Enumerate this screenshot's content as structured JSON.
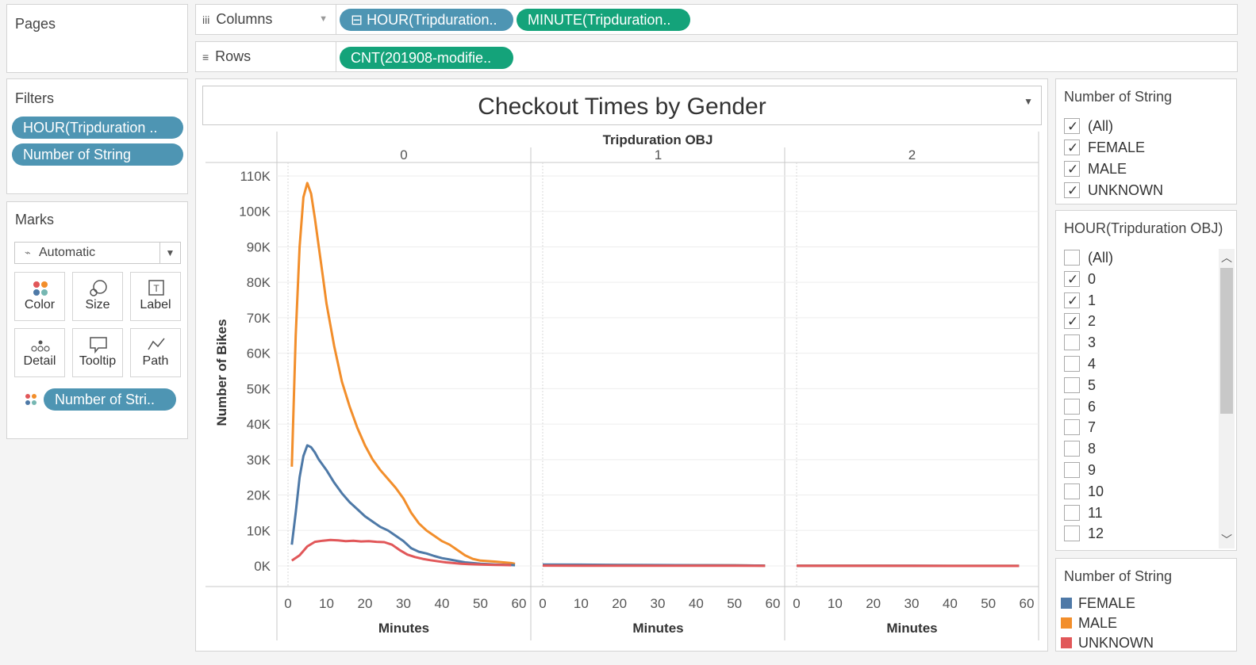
{
  "pages": {
    "title": "Pages"
  },
  "columns": {
    "label": "Columns",
    "pills": [
      "⊟ HOUR(Tripduration..",
      "MINUTE(Tripduration.."
    ]
  },
  "rows": {
    "label": "Rows",
    "pills": [
      "CNT(201908-modifie.."
    ]
  },
  "filters": {
    "title": "Filters",
    "pills": [
      "HOUR(Tripduration ..",
      "Number of String"
    ]
  },
  "marks": {
    "title": "Marks",
    "type": "Automatic",
    "cards": [
      "Color",
      "Size",
      "Label",
      "Detail",
      "Tooltip",
      "Path"
    ],
    "pill": "Number of Stri.."
  },
  "view": {
    "title": "Checkout Times by Gender"
  },
  "legend_filter_string": {
    "title": "Number of String",
    "items": [
      {
        "label": "(All)",
        "checked": true
      },
      {
        "label": "FEMALE",
        "checked": true
      },
      {
        "label": "MALE",
        "checked": true
      },
      {
        "label": "UNKNOWN",
        "checked": true
      }
    ]
  },
  "legend_filter_hour": {
    "title": "HOUR(Tripduration OBJ)",
    "items": [
      {
        "label": "(All)",
        "checked": false
      },
      {
        "label": "0",
        "checked": true
      },
      {
        "label": "1",
        "checked": true
      },
      {
        "label": "2",
        "checked": true
      },
      {
        "label": "3",
        "checked": false
      },
      {
        "label": "4",
        "checked": false
      },
      {
        "label": "5",
        "checked": false
      },
      {
        "label": "6",
        "checked": false
      },
      {
        "label": "7",
        "checked": false
      },
      {
        "label": "8",
        "checked": false
      },
      {
        "label": "9",
        "checked": false
      },
      {
        "label": "10",
        "checked": false
      },
      {
        "label": "11",
        "checked": false
      },
      {
        "label": "12",
        "checked": false
      }
    ]
  },
  "color_legend": {
    "title": "Number of String",
    "items": [
      {
        "label": "FEMALE",
        "color": "#4e79a7"
      },
      {
        "label": "MALE",
        "color": "#f28e2b"
      },
      {
        "label": "UNKNOWN",
        "color": "#e15759"
      }
    ]
  },
  "chart_data": {
    "type": "line",
    "title": "Checkout Times by Gender",
    "panel_header": "Tripduration OBJ",
    "panels": [
      "0",
      "1",
      "2"
    ],
    "xlabel": "Minutes",
    "ylabel": "Number of Bikes",
    "xlim": [
      0,
      60
    ],
    "ylim": [
      0,
      110000
    ],
    "x_ticks": [
      "0",
      "10",
      "20",
      "30",
      "40",
      "50",
      "60"
    ],
    "y_ticks": [
      "0K",
      "10K",
      "20K",
      "30K",
      "40K",
      "50K",
      "60K",
      "70K",
      "80K",
      "90K",
      "100K",
      "110K"
    ],
    "y_tick_values": [
      0,
      10000,
      20000,
      30000,
      40000,
      50000,
      60000,
      70000,
      80000,
      90000,
      100000,
      110000
    ],
    "series": [
      {
        "name": "MALE",
        "color": "#f28e2b",
        "panels": [
          [
            [
              1,
              28000
            ],
            [
              2,
              65000
            ],
            [
              3,
              90000
            ],
            [
              4,
              104000
            ],
            [
              5,
              108000
            ],
            [
              6,
              105000
            ],
            [
              7,
              98000
            ],
            [
              8,
              90000
            ],
            [
              9,
              82000
            ],
            [
              10,
              74000
            ],
            [
              12,
              62000
            ],
            [
              14,
              52000
            ],
            [
              16,
              45000
            ],
            [
              18,
              39000
            ],
            [
              20,
              34000
            ],
            [
              22,
              30000
            ],
            [
              24,
              27000
            ],
            [
              26,
              24500
            ],
            [
              28,
              22000
            ],
            [
              30,
              19000
            ],
            [
              32,
              15000
            ],
            [
              34,
              12000
            ],
            [
              36,
              10000
            ],
            [
              38,
              8500
            ],
            [
              40,
              7000
            ],
            [
              42,
              6000
            ],
            [
              44,
              4500
            ],
            [
              46,
              3000
            ],
            [
              48,
              2000
            ],
            [
              50,
              1500
            ],
            [
              54,
              1200
            ],
            [
              58,
              800
            ],
            [
              59,
              600
            ]
          ],
          [
            [
              0,
              300
            ],
            [
              10,
              280
            ],
            [
              20,
              250
            ],
            [
              30,
              220
            ],
            [
              40,
              200
            ],
            [
              50,
              150
            ],
            [
              58,
              100
            ]
          ],
          [
            [
              0,
              50
            ],
            [
              10,
              40
            ],
            [
              20,
              40
            ],
            [
              30,
              30
            ],
            [
              40,
              30
            ],
            [
              50,
              20
            ],
            [
              58,
              20
            ]
          ]
        ]
      },
      {
        "name": "FEMALE",
        "color": "#4e79a7",
        "panels": [
          [
            [
              1,
              6000
            ],
            [
              2,
              15000
            ],
            [
              3,
              25000
            ],
            [
              4,
              31000
            ],
            [
              5,
              34000
            ],
            [
              6,
              33500
            ],
            [
              7,
              32000
            ],
            [
              8,
              30000
            ],
            [
              10,
              27000
            ],
            [
              12,
              23500
            ],
            [
              14,
              20500
            ],
            [
              16,
              18000
            ],
            [
              18,
              16000
            ],
            [
              20,
              14000
            ],
            [
              22,
              12500
            ],
            [
              24,
              11000
            ],
            [
              26,
              10000
            ],
            [
              28,
              8500
            ],
            [
              30,
              7000
            ],
            [
              32,
              5000
            ],
            [
              34,
              4000
            ],
            [
              36,
              3500
            ],
            [
              38,
              2800
            ],
            [
              40,
              2200
            ],
            [
              42,
              1800
            ],
            [
              44,
              1400
            ],
            [
              46,
              1000
            ],
            [
              48,
              800
            ],
            [
              50,
              600
            ],
            [
              54,
              400
            ],
            [
              58,
              250
            ],
            [
              59,
              200
            ]
          ],
          [
            [
              0,
              400
            ],
            [
              10,
              350
            ],
            [
              20,
              300
            ],
            [
              30,
              250
            ],
            [
              40,
              200
            ],
            [
              50,
              150
            ],
            [
              58,
              100
            ]
          ],
          [
            [
              0,
              60
            ],
            [
              10,
              50
            ],
            [
              20,
              40
            ],
            [
              30,
              40
            ],
            [
              40,
              30
            ],
            [
              50,
              25
            ],
            [
              58,
              20
            ]
          ]
        ]
      },
      {
        "name": "UNKNOWN",
        "color": "#e15759",
        "panels": [
          [
            [
              1,
              1500
            ],
            [
              3,
              3000
            ],
            [
              5,
              5500
            ],
            [
              7,
              6800
            ],
            [
              9,
              7100
            ],
            [
              11,
              7300
            ],
            [
              13,
              7200
            ],
            [
              15,
              7000
            ],
            [
              17,
              7100
            ],
            [
              19,
              6900
            ],
            [
              21,
              7000
            ],
            [
              23,
              6800
            ],
            [
              25,
              6700
            ],
            [
              27,
              6000
            ],
            [
              29,
              4500
            ],
            [
              31,
              3200
            ],
            [
              33,
              2500
            ],
            [
              35,
              2000
            ],
            [
              37,
              1600
            ],
            [
              39,
              1300
            ],
            [
              41,
              1000
            ],
            [
              43,
              800
            ],
            [
              45,
              600
            ],
            [
              47,
              500
            ],
            [
              50,
              400
            ],
            [
              54,
              300
            ],
            [
              58,
              200
            ]
          ],
          [
            [
              0,
              80
            ],
            [
              10,
              70
            ],
            [
              20,
              60
            ],
            [
              30,
              60
            ],
            [
              40,
              50
            ],
            [
              50,
              40
            ],
            [
              58,
              30
            ]
          ],
          [
            [
              0,
              20
            ],
            [
              10,
              20
            ],
            [
              20,
              15
            ],
            [
              30,
              15
            ],
            [
              40,
              10
            ],
            [
              50,
              10
            ],
            [
              58,
              10
            ]
          ]
        ]
      }
    ]
  }
}
